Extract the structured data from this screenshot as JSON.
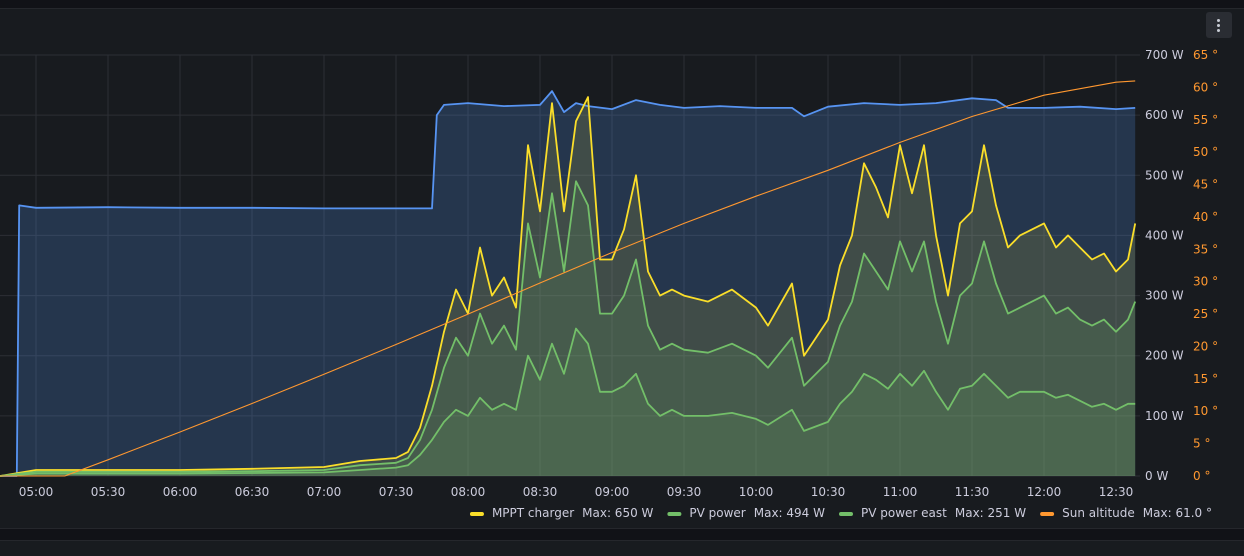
{
  "panel": {
    "title": ""
  },
  "colors": {
    "background": "#181b1f",
    "grid": "#2c2f35",
    "axis_text": "#ccccdc",
    "series_mppt": "#fade2a",
    "series_pv": "#73bf69",
    "series_pv_east": "#73bf69",
    "series_sun": "#ff9830",
    "series_load": "#5794f2"
  },
  "icons": {
    "panel_menu": "vertical-dots-icon"
  },
  "chart_data": {
    "type": "line",
    "title": "",
    "xlabel": "",
    "ylabel": "",
    "x_domain": [
      "04:45",
      "12:40"
    ],
    "x_ticks": [
      "05:00",
      "05:30",
      "06:00",
      "06:30",
      "07:00",
      "07:30",
      "08:00",
      "08:30",
      "09:00",
      "09:30",
      "10:00",
      "10:30",
      "11:00",
      "11:30",
      "12:00",
      "12:30"
    ],
    "y_left": {
      "unit": "W",
      "ylim": [
        0,
        700
      ],
      "ticks": [
        "0 W",
        "100 W",
        "200 W",
        "300 W",
        "400 W",
        "500 W",
        "600 W",
        "700 W"
      ]
    },
    "y_right": {
      "unit": "°",
      "ylim": [
        0,
        65
      ],
      "ticks": [
        "0 °",
        "5 °",
        "10 °",
        "15 °",
        "20 °",
        "25 °",
        "30 °",
        "35 °",
        "40 °",
        "45 °",
        "50 °",
        "55 °",
        "60 °",
        "65 °"
      ]
    },
    "grid": true,
    "legend_position": "bottom-right",
    "series": [
      {
        "key": "load",
        "axis": "left",
        "color": "#5794f2",
        "x": [
          "04:45",
          "04:52",
          "04:53",
          "05:00",
          "05:30",
          "06:00",
          "06:30",
          "07:00",
          "07:30",
          "07:45",
          "07:47",
          "07:50",
          "08:00",
          "08:15",
          "08:30",
          "08:35",
          "08:40",
          "08:45",
          "08:50",
          "09:00",
          "09:10",
          "09:20",
          "09:30",
          "09:45",
          "10:00",
          "10:15",
          "10:20",
          "10:30",
          "10:45",
          "11:00",
          "11:15",
          "11:30",
          "11:40",
          "11:45",
          "12:00",
          "12:15",
          "12:30",
          "12:38"
        ],
        "values": [
          0,
          0,
          450,
          446,
          447,
          446,
          446,
          445,
          445,
          445,
          600,
          617,
          620,
          615,
          617,
          640,
          605,
          620,
          615,
          610,
          625,
          617,
          612,
          615,
          612,
          612,
          598,
          614,
          620,
          617,
          620,
          628,
          625,
          612,
          612,
          614,
          610,
          612
        ]
      },
      {
        "key": "mppt",
        "name": "MPPT charger",
        "axis": "left",
        "color": "#fade2a",
        "x": [
          "04:45",
          "05:00",
          "06:00",
          "06:30",
          "07:00",
          "07:15",
          "07:30",
          "07:35",
          "07:40",
          "07:45",
          "07:50",
          "07:55",
          "08:00",
          "08:05",
          "08:10",
          "08:15",
          "08:20",
          "08:25",
          "08:30",
          "08:35",
          "08:40",
          "08:45",
          "08:50",
          "08:55",
          "09:00",
          "09:05",
          "09:10",
          "09:15",
          "09:20",
          "09:25",
          "09:30",
          "09:40",
          "09:50",
          "10:00",
          "10:05",
          "10:15",
          "10:20",
          "10:30",
          "10:35",
          "10:40",
          "10:45",
          "10:50",
          "10:55",
          "11:00",
          "11:05",
          "11:10",
          "11:15",
          "11:20",
          "11:25",
          "11:30",
          "11:35",
          "11:40",
          "11:45",
          "11:50",
          "12:00",
          "12:05",
          "12:10",
          "12:15",
          "12:20",
          "12:25",
          "12:30",
          "12:35",
          "12:38"
        ],
        "values": [
          0,
          10,
          10,
          12,
          15,
          25,
          30,
          40,
          80,
          150,
          240,
          310,
          270,
          380,
          300,
          330,
          280,
          550,
          440,
          620,
          440,
          590,
          630,
          360,
          360,
          410,
          500,
          340,
          300,
          310,
          300,
          290,
          310,
          280,
          250,
          320,
          200,
          260,
          350,
          400,
          520,
          480,
          430,
          550,
          470,
          550,
          400,
          300,
          420,
          440,
          550,
          450,
          380,
          400,
          420,
          380,
          400,
          380,
          360,
          370,
          340,
          360,
          420
        ]
      },
      {
        "key": "pv",
        "name": "PV power",
        "axis": "left",
        "color": "#73bf69",
        "x": [
          "04:45",
          "05:00",
          "06:00",
          "06:30",
          "07:00",
          "07:15",
          "07:30",
          "07:35",
          "07:40",
          "07:45",
          "07:50",
          "07:55",
          "08:00",
          "08:05",
          "08:10",
          "08:15",
          "08:20",
          "08:25",
          "08:30",
          "08:35",
          "08:40",
          "08:45",
          "08:50",
          "08:55",
          "09:00",
          "09:05",
          "09:10",
          "09:15",
          "09:20",
          "09:25",
          "09:30",
          "09:40",
          "09:50",
          "10:00",
          "10:05",
          "10:15",
          "10:20",
          "10:30",
          "10:35",
          "10:40",
          "10:45",
          "10:50",
          "10:55",
          "11:00",
          "11:05",
          "11:10",
          "11:15",
          "11:20",
          "11:25",
          "11:30",
          "11:35",
          "11:40",
          "11:45",
          "11:50",
          "12:00",
          "12:05",
          "12:10",
          "12:15",
          "12:20",
          "12:25",
          "12:30",
          "12:35",
          "12:38"
        ],
        "values": [
          0,
          7,
          7,
          8,
          10,
          18,
          22,
          30,
          60,
          110,
          180,
          230,
          200,
          270,
          220,
          250,
          210,
          420,
          330,
          470,
          340,
          490,
          450,
          270,
          270,
          300,
          360,
          250,
          210,
          220,
          210,
          205,
          220,
          200,
          180,
          230,
          150,
          190,
          250,
          290,
          370,
          340,
          310,
          390,
          340,
          390,
          290,
          220,
          300,
          320,
          390,
          320,
          270,
          280,
          300,
          270,
          280,
          260,
          250,
          260,
          240,
          260,
          290
        ]
      },
      {
        "key": "pv_east",
        "name": "PV power east",
        "axis": "left",
        "color": "#73bf69",
        "x": [
          "04:45",
          "05:00",
          "06:00",
          "06:30",
          "07:00",
          "07:15",
          "07:30",
          "07:35",
          "07:40",
          "07:45",
          "07:50",
          "07:55",
          "08:00",
          "08:05",
          "08:10",
          "08:15",
          "08:20",
          "08:25",
          "08:30",
          "08:35",
          "08:40",
          "08:45",
          "08:50",
          "08:55",
          "09:00",
          "09:05",
          "09:10",
          "09:15",
          "09:20",
          "09:25",
          "09:30",
          "09:40",
          "09:50",
          "10:00",
          "10:05",
          "10:15",
          "10:20",
          "10:30",
          "10:35",
          "10:40",
          "10:45",
          "10:50",
          "10:55",
          "11:00",
          "11:05",
          "11:10",
          "11:15",
          "11:20",
          "11:25",
          "11:30",
          "11:35",
          "11:40",
          "11:45",
          "11:50",
          "12:00",
          "12:05",
          "12:10",
          "12:15",
          "12:20",
          "12:25",
          "12:30",
          "12:35",
          "12:38"
        ],
        "values": [
          0,
          4,
          4,
          5,
          6,
          10,
          14,
          18,
          35,
          60,
          90,
          110,
          100,
          130,
          110,
          120,
          110,
          200,
          160,
          220,
          170,
          245,
          220,
          140,
          140,
          150,
          170,
          120,
          100,
          110,
          100,
          100,
          105,
          95,
          85,
          110,
          75,
          90,
          120,
          140,
          170,
          160,
          145,
          170,
          150,
          175,
          140,
          110,
          145,
          150,
          170,
          150,
          130,
          140,
          140,
          130,
          135,
          125,
          115,
          120,
          110,
          120,
          120
        ]
      },
      {
        "key": "sun",
        "name": "Sun altitude",
        "axis": "right",
        "color": "#ff9830",
        "x": [
          "04:45",
          "05:00",
          "05:12",
          "05:30",
          "06:00",
          "06:30",
          "07:00",
          "07:30",
          "08:00",
          "08:30",
          "09:00",
          "09:30",
          "10:00",
          "10:30",
          "11:00",
          "11:30",
          "12:00",
          "12:30",
          "12:38"
        ],
        "values": [
          0,
          0,
          0,
          2.5,
          6.8,
          11.2,
          15.7,
          20.3,
          25,
          29.8,
          34.5,
          39,
          43.2,
          47.2,
          51.5,
          55.5,
          58.8,
          60.8,
          61
        ]
      }
    ],
    "legend": [
      {
        "key": "mppt",
        "label": "MPPT charger",
        "stat": "Max: 650 W",
        "color": "#fade2a"
      },
      {
        "key": "pv",
        "label": "PV power",
        "stat": "Max: 494 W",
        "color": "#73bf69"
      },
      {
        "key": "pv_east",
        "label": "PV power east",
        "stat": "Max: 251 W",
        "color": "#73bf69"
      },
      {
        "key": "sun",
        "label": "Sun altitude",
        "stat": "Max: 61.0 °",
        "color": "#ff9830"
      }
    ]
  }
}
